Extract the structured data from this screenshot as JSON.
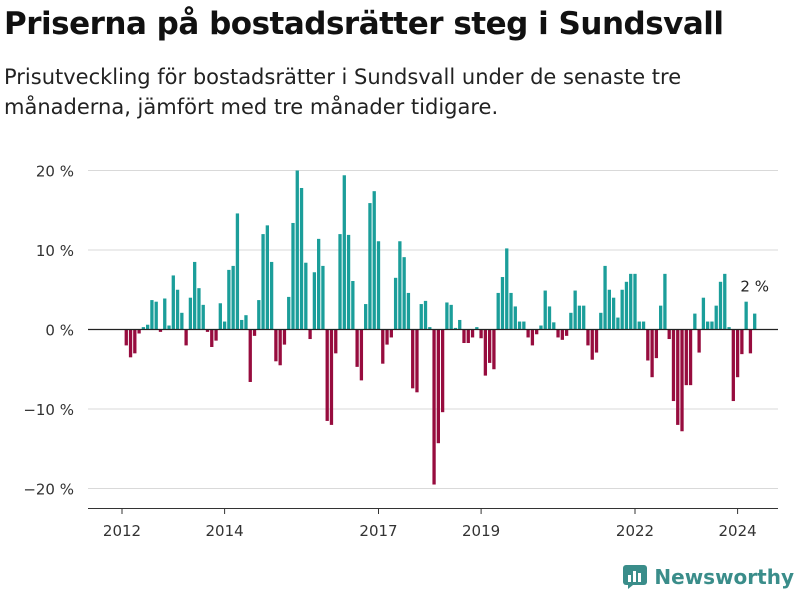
{
  "title": "Priserna på bostadsrätter steg i Sundsvall",
  "subtitle": "Prisutveckling för bostadsrätter i Sundsvall under de senaste tre månaderna, jämfört med tre månader tidigare.",
  "brand": "Newsworthy",
  "colors": {
    "positive": "#1b9e9a",
    "negative": "#970c3e",
    "zero_line": "#222222",
    "grid": "#d9d9d9",
    "brand": "#3a8d8a"
  },
  "chart_data": {
    "type": "bar",
    "annotation": "2 %",
    "ylim": [
      -22,
      21
    ],
    "y_ticks": [
      {
        "value": 20,
        "label": "20 %"
      },
      {
        "value": 10,
        "label": "10 %"
      },
      {
        "value": 0,
        "label": "0 %"
      },
      {
        "value": -10,
        "label": "−10 %"
      },
      {
        "value": -20,
        "label": "−20 %"
      }
    ],
    "x_ticks": [
      {
        "value": 2012,
        "label": "2012"
      },
      {
        "value": 2014,
        "label": "2014"
      },
      {
        "value": 2017,
        "label": "2017"
      },
      {
        "value": 2019,
        "label": "2019"
      },
      {
        "value": 2022,
        "label": "2022"
      },
      {
        "value": 2024,
        "label": "2024"
      }
    ],
    "x_start": 2012.0,
    "x_step": 0.0833333,
    "values": [
      0,
      -2,
      -3.5,
      -3,
      -0.5,
      0.3,
      0.6,
      3.7,
      3.5,
      -0.3,
      3.9,
      0.5,
      6.8,
      5,
      2.1,
      -2,
      4,
      8.5,
      5.2,
      3.1,
      -0.3,
      -2.2,
      -1.4,
      3.3,
      1,
      7.5,
      8,
      14.6,
      1.2,
      1.8,
      -6.6,
      -0.8,
      3.7,
      12,
      13.1,
      8.5,
      -4,
      -4.5,
      -1.9,
      4.1,
      13.4,
      20,
      17.8,
      8.4,
      -1.2,
      7.2,
      11.4,
      8,
      -11.5,
      -12,
      -3,
      12,
      19.4,
      11.9,
      6.1,
      -4.7,
      -6.4,
      3.2,
      15.9,
      17.4,
      11.1,
      -4.3,
      -1.9,
      -1,
      6.5,
      11.1,
      9.1,
      4.6,
      -7.4,
      -7.9,
      3.2,
      3.6,
      0.3,
      -19.5,
      -14.3,
      -10.4,
      3.4,
      3.1,
      0.2,
      1.2,
      -1.7,
      -1.7,
      -1,
      0.3,
      -1.1,
      -5.8,
      -4.2,
      -5,
      4.6,
      6.6,
      10.2,
      4.6,
      2.9,
      1,
      1,
      -1,
      -2,
      -0.6,
      0.5,
      4.9,
      2.9,
      0.9,
      -1,
      -1.3,
      -0.8,
      2.1,
      4.9,
      3,
      3,
      -2,
      -3.8,
      -2.9,
      2.1,
      8,
      5,
      4,
      1.5,
      5,
      6,
      7,
      7,
      1,
      1,
      -3.9,
      -6,
      -3.6,
      3,
      7,
      -1.2,
      -9,
      -12,
      -12.8,
      -7,
      -7,
      2,
      -2.9,
      4,
      1,
      1,
      3,
      6,
      7,
      0.3,
      -9,
      -6,
      -3.1,
      3.5,
      -3,
      2
    ]
  }
}
